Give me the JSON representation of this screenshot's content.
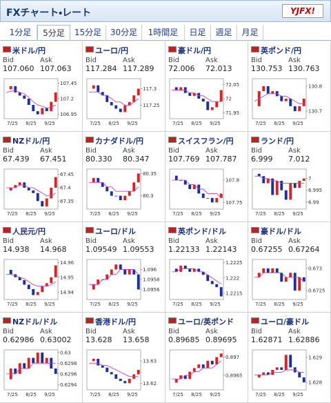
{
  "header": {
    "title": "FXチャート・レート",
    "logo": "YJFX!"
  },
  "tabs": [
    "1分足",
    "5分足",
    "15分足",
    "30分足",
    "1時間足",
    "日足",
    "週足",
    "月足"
  ],
  "active_tab": 1,
  "labels": {
    "bid": "Bid",
    "ask": "Ask"
  },
  "xticks": [
    "7/25",
    "8/25",
    "9/25"
  ],
  "candle_colors": {
    "up": "#e02020",
    "down": "#1a2fa0",
    "ma": "#c040c0"
  },
  "cells": [
    {
      "name": "米ドル/円",
      "bid": "107.060",
      "ask": "107.063",
      "chart": {
        "type": "candlestick",
        "ylim": [
          106.88,
          107.52
        ],
        "yticks": [
          107.45,
          107.2,
          106.95
        ],
        "values": [
          107.35,
          107.4,
          107.3,
          107.25,
          107.2,
          107.1,
          107.0,
          106.95,
          107.05,
          107.0,
          107.15,
          107.3
        ],
        "ma": [
          107.3,
          107.32,
          107.33,
          107.3,
          107.28,
          107.22,
          107.15,
          107.1,
          107.08,
          107.05,
          107.06,
          107.1
        ]
      }
    },
    {
      "name": "ユーロ/円",
      "bid": "117.284",
      "ask": "117.289",
      "chart": {
        "type": "candlestick",
        "ylim": [
          117.21,
          117.33
        ],
        "yticks": [
          117.3,
          117.25
        ],
        "values": [
          117.3,
          117.31,
          117.29,
          117.28,
          117.26,
          117.25,
          117.24,
          117.23,
          117.25,
          117.26,
          117.28,
          117.3
        ],
        "ma": [
          117.29,
          117.29,
          117.29,
          117.28,
          117.28,
          117.27,
          117.26,
          117.26,
          117.25,
          117.25,
          117.26,
          117.27
        ]
      }
    },
    {
      "name": "豪ドル/円",
      "bid": "72.006",
      "ask": "72.013",
      "chart": {
        "type": "candlestick",
        "ylim": [
          71.93,
          72.07
        ],
        "yticks": [
          72.05,
          72,
          71.95
        ],
        "values": [
          72.04,
          72.03,
          72.04,
          72.02,
          72.01,
          72.02,
          72.0,
          71.99,
          71.96,
          71.97,
          71.99,
          72.03
        ],
        "ma": [
          72.03,
          72.03,
          72.03,
          72.03,
          72.02,
          72.02,
          72.01,
          72.01,
          72.0,
          71.99,
          71.99,
          71.99
        ]
      }
    },
    {
      "name": "英ポンド/円",
      "bid": "130.753",
      "ask": "130.763",
      "chart": {
        "type": "candlestick",
        "ylim": [
          130.67,
          130.83
        ],
        "yticks": [
          130.8,
          130.7
        ],
        "values": [
          130.72,
          130.78,
          130.8,
          130.77,
          130.78,
          130.76,
          130.74,
          130.75,
          130.72,
          130.7,
          130.72,
          130.75
        ],
        "ma": [
          130.74,
          130.75,
          130.76,
          130.77,
          130.77,
          130.77,
          130.76,
          130.76,
          130.75,
          130.74,
          130.73,
          130.73
        ]
      }
    },
    {
      "name": "NZドル/円",
      "bid": "67.439",
      "ask": "67.451",
      "chart": {
        "type": "candlestick",
        "ylim": [
          67.32,
          67.47
        ],
        "yticks": [
          67.45,
          67.4,
          67.35
        ],
        "values": [
          67.39,
          67.4,
          67.41,
          67.42,
          67.4,
          67.39,
          67.38,
          67.35,
          67.33,
          67.36,
          67.4,
          67.44
        ],
        "ma": [
          67.4,
          67.4,
          67.4,
          67.41,
          67.41,
          67.4,
          67.4,
          67.39,
          67.38,
          67.37,
          67.37,
          67.38
        ]
      }
    },
    {
      "name": "カナダドル/円",
      "bid": "80.330",
      "ask": "80.347",
      "chart": {
        "type": "candlestick",
        "ylim": [
          80.27,
          80.36
        ],
        "yticks": [
          80.35,
          80.3
        ],
        "values": [
          80.33,
          80.34,
          80.33,
          80.32,
          80.31,
          80.3,
          80.3,
          80.29,
          80.3,
          80.31,
          80.33,
          80.35
        ],
        "ma": [
          80.33,
          80.33,
          80.33,
          80.33,
          80.32,
          80.32,
          80.31,
          80.31,
          80.31,
          80.31,
          80.31,
          80.32
        ]
      }
    },
    {
      "name": "スイスフラン/円",
      "bid": "107.769",
      "ask": "107.787",
      "chart": {
        "type": "candlestick",
        "ylim": [
          107.735,
          107.825
        ],
        "yticks": [
          107.8,
          107.75
        ],
        "values": [
          107.81,
          107.8,
          107.8,
          107.79,
          107.78,
          107.79,
          107.77,
          107.76,
          107.76,
          107.75,
          107.76,
          107.77
        ],
        "ma": [
          107.8,
          107.8,
          107.8,
          107.8,
          107.79,
          107.79,
          107.78,
          107.78,
          107.77,
          107.77,
          107.77,
          107.76
        ]
      }
    },
    {
      "name": "ランド/円",
      "bid": "6.999",
      "ask": "7.012",
      "chart": {
        "type": "candlestick",
        "ylim": [
          6.987,
          7.004
        ],
        "yticks": [
          7,
          6.995,
          6.99
        ],
        "values": [
          7.002,
          7.001,
          6.998,
          7.0,
          6.993,
          6.999,
          6.995,
          6.991,
          6.998,
          6.996,
          6.999,
          7.0
        ],
        "ma": [
          7.001,
          7.001,
          7.0,
          7.0,
          6.999,
          6.999,
          6.998,
          6.998,
          6.998,
          6.998,
          6.998,
          6.998
        ]
      }
    },
    {
      "name": "人民元/円",
      "bid": "14.938",
      "ask": "14.968",
      "chart": {
        "type": "candlestick",
        "ylim": [
          14.935,
          14.962
        ],
        "yticks": [
          14.96,
          14.95,
          14.94
        ],
        "values": [
          14.955,
          14.952,
          14.95,
          14.948,
          14.945,
          14.942,
          14.938,
          14.94,
          14.944,
          14.946,
          14.95,
          14.958
        ],
        "ma": [
          14.952,
          14.952,
          14.951,
          14.95,
          14.949,
          14.947,
          14.945,
          14.944,
          14.944,
          14.944,
          14.945,
          14.947
        ]
      }
    },
    {
      "name": "ユーロ/ドル",
      "bid": "1.09549",
      "ask": "1.09553",
      "chart": {
        "type": "candlestick",
        "ylim": [
          1.0954,
          1.0962
        ],
        "yticks": [
          1.096,
          1.0958,
          1.0956
        ],
        "values": [
          1.0956,
          1.0957,
          1.0958,
          1.0958,
          1.0959,
          1.096,
          1.0961,
          1.096,
          1.0959,
          1.096,
          1.0959,
          1.0956
        ],
        "ma": [
          1.0957,
          1.0957,
          1.0957,
          1.0958,
          1.0958,
          1.0959,
          1.0959,
          1.096,
          1.096,
          1.096,
          1.096,
          1.0959
        ]
      }
    },
    {
      "name": "英ポンド/ドル",
      "bid": "1.22133",
      "ask": "1.22143",
      "chart": {
        "type": "candlestick",
        "ylim": [
          1.2213,
          1.2226
        ],
        "yticks": [
          1.2225,
          1.222,
          1.2215
        ],
        "values": [
          1.2223,
          1.2222,
          1.2224,
          1.2223,
          1.2222,
          1.2223,
          1.2222,
          1.2221,
          1.2219,
          1.2218,
          1.2217,
          1.2214
        ],
        "ma": [
          1.2222,
          1.2222,
          1.2223,
          1.2223,
          1.2223,
          1.2223,
          1.2222,
          1.2222,
          1.2221,
          1.222,
          1.2219,
          1.2218
        ]
      }
    },
    {
      "name": "豪ドル/ドル",
      "bid": "0.67255",
      "ask": "0.67264",
      "chart": {
        "type": "candlestick",
        "ylim": [
          0.6723,
          0.6732
        ],
        "yticks": [
          0.673,
          0.6725
        ],
        "values": [
          0.6728,
          0.6729,
          0.673,
          0.6729,
          0.673,
          0.6729,
          0.6727,
          0.6728,
          0.6729,
          0.6725,
          0.6728,
          0.6727
        ],
        "ma": [
          0.6728,
          0.6728,
          0.6729,
          0.6729,
          0.6729,
          0.6729,
          0.6729,
          0.6728,
          0.6728,
          0.6728,
          0.6728,
          0.6727
        ]
      }
    },
    {
      "name": "NZドル/ドル",
      "bid": "0.62986",
      "ask": "0.63002",
      "chart": {
        "type": "candlestick",
        "ylim": [
          0.6293,
          0.63005
        ],
        "yticks": [
          0.63,
          0.6298,
          0.6296,
          0.6294
        ],
        "values": [
          0.6295,
          0.6297,
          0.6296,
          0.6298,
          0.6297,
          0.6299,
          0.6298,
          0.63,
          0.6298,
          0.6299,
          0.6297,
          0.6296
        ],
        "ma": [
          0.6296,
          0.6296,
          0.6296,
          0.6297,
          0.6297,
          0.6297,
          0.6298,
          0.6298,
          0.6298,
          0.6298,
          0.6298,
          0.6298
        ]
      }
    },
    {
      "name": "香港ドル/円",
      "bid": "13.628",
      "ask": "13.658",
      "chart": {
        "type": "candlestick",
        "ylim": [
          13.617,
          13.635
        ],
        "yticks": [
          13.63,
          13.62
        ],
        "values": [
          13.63,
          13.631,
          13.628,
          13.627,
          13.625,
          13.624,
          13.622,
          13.621,
          13.62,
          13.622,
          13.624,
          13.626
        ],
        "ma": [
          13.629,
          13.629,
          13.629,
          13.628,
          13.628,
          13.627,
          13.626,
          13.625,
          13.624,
          13.623,
          13.623,
          13.623
        ]
      }
    },
    {
      "name": "ユーロ/英ポンド",
      "bid": "0.89685",
      "ask": "0.89695",
      "chart": {
        "type": "candlestick",
        "ylim": [
          0.8961,
          0.8972
        ],
        "yticks": [
          0.897,
          0.8965
        ],
        "values": [
          0.8963,
          0.8964,
          0.8965,
          0.8964,
          0.8966,
          0.8967,
          0.8968,
          0.8967,
          0.8969,
          0.8968,
          0.897,
          0.8971
        ],
        "ma": [
          0.8964,
          0.8964,
          0.8964,
          0.8965,
          0.8965,
          0.8966,
          0.8966,
          0.8967,
          0.8967,
          0.8967,
          0.8968,
          0.8969
        ]
      }
    },
    {
      "name": "ユーロ/豪ドル",
      "bid": "1.62871",
      "ask": "1.62886",
      "chart": {
        "type": "candlestick",
        "ylim": [
          1.6277,
          1.6293
        ],
        "yticks": [
          1.629,
          1.628
        ],
        "values": [
          1.6282,
          1.6283,
          1.6284,
          1.6283,
          1.6285,
          1.6286,
          1.6285,
          1.6291,
          1.6286,
          1.6284,
          1.6282,
          1.628
        ],
        "ma": [
          1.6283,
          1.6283,
          1.6283,
          1.6283,
          1.6284,
          1.6284,
          1.6284,
          1.6285,
          1.6285,
          1.6285,
          1.6284,
          1.6284
        ]
      }
    }
  ]
}
